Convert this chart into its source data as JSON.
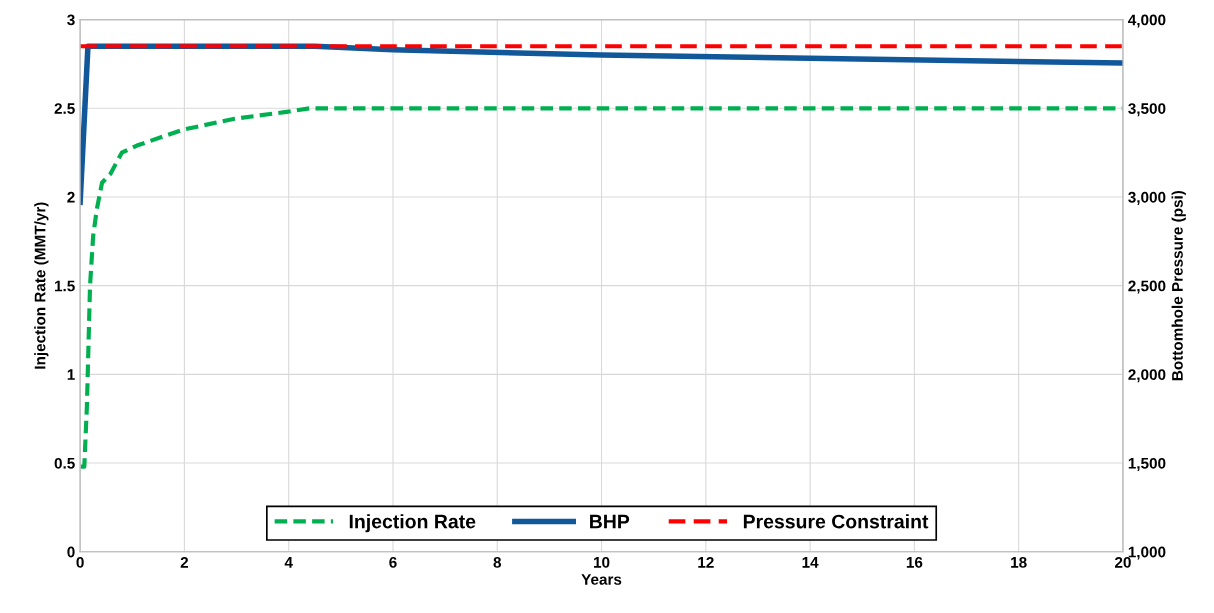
{
  "chart_data": {
    "type": "line",
    "xlabel": "Years",
    "ylabel": "Injection Rate (MMT/yr)",
    "y2label": "Bottomhole Pressure (psi)",
    "xlim": [
      0,
      20
    ],
    "xticks": [
      0,
      2,
      4,
      6,
      8,
      10,
      12,
      14,
      16,
      18,
      20
    ],
    "ylim": [
      0,
      3
    ],
    "yticks": [
      0,
      0.5,
      1,
      1.5,
      2,
      2.5,
      3
    ],
    "y2lim": [
      1000,
      4000
    ],
    "y2ticks": [
      {
        "value": 1000,
        "label": "1,000"
      },
      {
        "value": 1500,
        "label": "1,500"
      },
      {
        "value": 2000,
        "label": "2,000"
      },
      {
        "value": 2500,
        "label": "2,500"
      },
      {
        "value": 3000,
        "label": "3,000"
      },
      {
        "value": 3500,
        "label": "3,500"
      },
      {
        "value": 4000,
        "label": "4,000"
      }
    ],
    "grid": true,
    "legend": "bottom",
    "series": [
      {
        "name": "Injection Rate",
        "color": "#00b050",
        "line_style": "dashed",
        "x": [
          0,
          0.08,
          0.13,
          0.19,
          0.25,
          0.32,
          0.42,
          0.58,
          0.8,
          1.09,
          1.98,
          2.94,
          3.96,
          4.41,
          20
        ],
        "values": [
          0.48,
          0.48,
          0.82,
          1.5,
          1.78,
          1.93,
          2.08,
          2.13,
          2.25,
          2.29,
          2.38,
          2.44,
          2.48,
          2.5,
          2.5
        ]
      },
      {
        "name": "BHP",
        "color": "#10589a",
        "line_style": "solid",
        "axis": "y2",
        "x": [
          0,
          0.15,
          4.5,
          6,
          10,
          20
        ],
        "values": [
          2970,
          3850,
          3850,
          3830,
          3800,
          3755
        ]
      },
      {
        "name": "Pressure Constraint",
        "color": "#ff0000",
        "line_style": "dashed",
        "axis": "y2",
        "x": [
          0,
          20
        ],
        "values": [
          3850,
          3850
        ]
      }
    ]
  }
}
